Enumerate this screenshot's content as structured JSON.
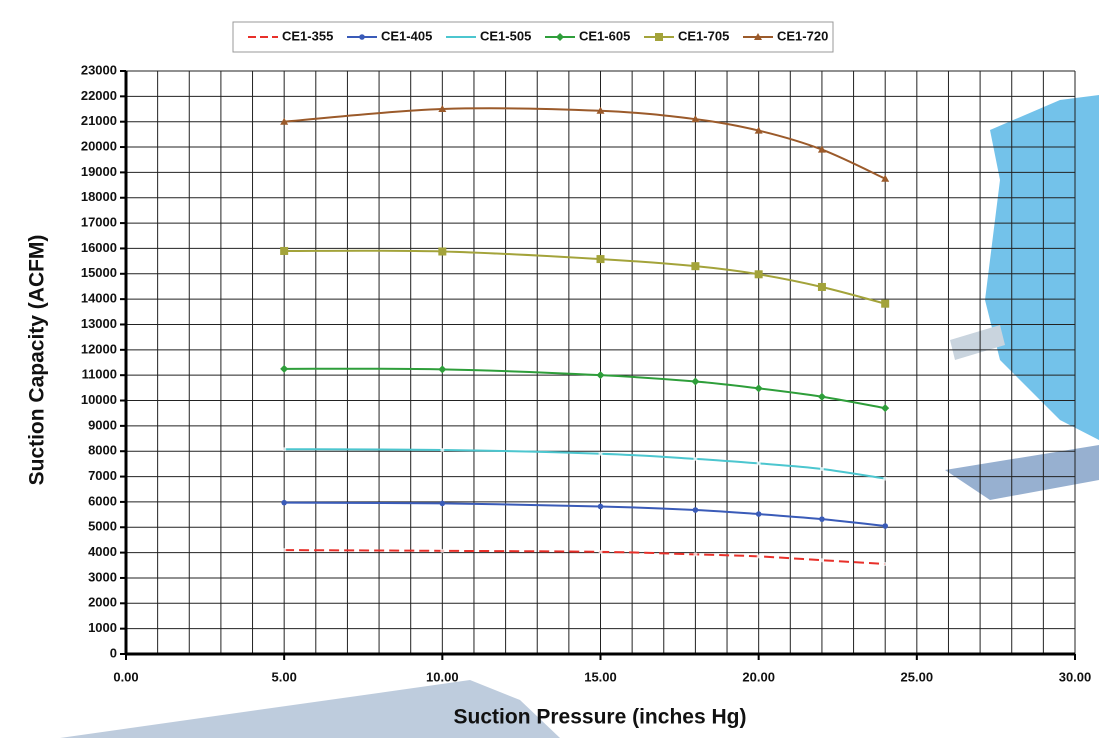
{
  "chart_data": {
    "type": "line",
    "x_label": "Suction Pressure (inches Hg)",
    "y_label": "Suction Capacity (ACFM)",
    "x": [
      5,
      10,
      15,
      18,
      20,
      22,
      24
    ],
    "series": [
      {
        "name": "CE1-355",
        "color": "#e8302a",
        "dash": true,
        "marker": "none",
        "values": [
          4100,
          4070,
          4030,
          3930,
          3850,
          3700,
          3550
        ]
      },
      {
        "name": "CE1-405",
        "color": "#3a5bb8",
        "marker": "circle",
        "values": [
          5970,
          5940,
          5820,
          5680,
          5520,
          5320,
          5050
        ]
      },
      {
        "name": "CE1-505",
        "color": "#4cc6cf",
        "marker": "none",
        "values": [
          8080,
          8050,
          7900,
          7700,
          7520,
          7300,
          6920
        ]
      },
      {
        "name": "CE1-605",
        "color": "#2e9e3a",
        "marker": "diamond",
        "values": [
          11250,
          11230,
          11000,
          10750,
          10480,
          10150,
          9700
        ]
      },
      {
        "name": "CE1-705",
        "color": "#a3a33a",
        "marker": "square",
        "values": [
          15900,
          15880,
          15580,
          15300,
          14980,
          14480,
          13820
        ]
      },
      {
        "name": "CE1-720",
        "color": "#9b5a2a",
        "marker": "triangle",
        "values": [
          21000,
          21500,
          21430,
          21100,
          20650,
          19900,
          18750
        ]
      }
    ],
    "xlim": [
      0,
      30
    ],
    "xticks": [
      {
        "value": 0,
        "label": "0.00"
      },
      {
        "value": 5,
        "label": "5.00"
      },
      {
        "value": 10,
        "label": "10.00"
      },
      {
        "value": 15,
        "label": "15.00"
      },
      {
        "value": 20,
        "label": "20.00"
      },
      {
        "value": 25,
        "label": "25.00"
      },
      {
        "value": 30,
        "label": "30.00"
      }
    ],
    "x_minor_grid": [
      1,
      2,
      3,
      4,
      6,
      7,
      8,
      9,
      11,
      12,
      13,
      14,
      16,
      17,
      18,
      19,
      21,
      22,
      23,
      24,
      26,
      27,
      28,
      29
    ],
    "ylim": [
      0,
      23000
    ],
    "yticks": [
      0,
      1000,
      2000,
      3000,
      4000,
      5000,
      6000,
      7000,
      8000,
      9000,
      10000,
      11000,
      12000,
      13000,
      14000,
      15000,
      16000,
      17000,
      18000,
      19000,
      20000,
      21000,
      22000,
      23000
    ],
    "grid": true,
    "legend": "top"
  }
}
